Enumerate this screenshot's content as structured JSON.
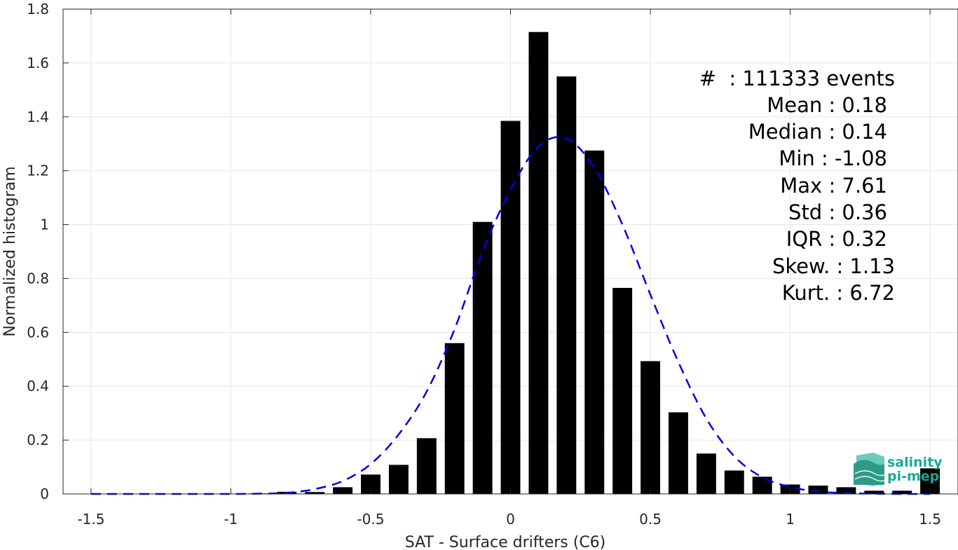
{
  "chart_data": {
    "type": "bar",
    "xlabel": "SAT - Surface drifters (C6)",
    "ylabel": "Normalized histogram",
    "xlim": [
      -1.6,
      1.6
    ],
    "ylim": [
      0,
      1.8
    ],
    "grid": true,
    "x_ticks": [
      "-1.5",
      "-1",
      "-0.5",
      "0",
      "0.5",
      "1",
      "1.5"
    ],
    "x_tick_values": [
      -1.5,
      -1,
      -0.5,
      0,
      0.5,
      1,
      1.5
    ],
    "y_ticks": [
      "0",
      "0.2",
      "0.4",
      "0.6",
      "0.8",
      "1",
      "1.2",
      "1.4",
      "1.6",
      "1.8"
    ],
    "y_tick_values": [
      0,
      0.2,
      0.4,
      0.6,
      0.8,
      1,
      1.2,
      1.4,
      1.6,
      1.8
    ],
    "bar_color": "#000000",
    "bar_width": 0.07,
    "bars": {
      "x": [
        -1.5,
        -1.4,
        -1.3,
        -1.2,
        -1.1,
        -1.0,
        -0.9,
        -0.8,
        -0.7,
        -0.6,
        -0.5,
        -0.4,
        -0.3,
        -0.2,
        -0.1,
        0.0,
        0.1,
        0.2,
        0.3,
        0.4,
        0.5,
        0.6,
        0.7,
        0.8,
        0.9,
        1.0,
        1.1,
        1.2,
        1.3,
        1.4,
        1.5
      ],
      "values": [
        0,
        0,
        0,
        0,
        0,
        0,
        0.002,
        0.008,
        0.007,
        0.025,
        0.072,
        0.108,
        0.207,
        0.56,
        1.01,
        1.385,
        1.715,
        1.55,
        1.275,
        0.765,
        0.493,
        0.303,
        0.15,
        0.087,
        0.064,
        0.035,
        0.031,
        0.025,
        0.012,
        0.012,
        0.095
      ]
    },
    "fit_line": {
      "style": "dashed",
      "color": "#0000e6",
      "x": [
        -1.5,
        -1.4,
        -1.3,
        -1.2,
        -1.1,
        -1.0,
        -0.9,
        -0.8,
        -0.7,
        -0.6,
        -0.5,
        -0.4,
        -0.3,
        -0.2,
        -0.1,
        0.0,
        0.1,
        0.2,
        0.3,
        0.4,
        0.5,
        0.6,
        0.7,
        0.8,
        0.9,
        1.0,
        1.1,
        1.2,
        1.3,
        1.4,
        1.5
      ],
      "values": [
        0.0,
        0.0,
        0.0,
        0.0,
        0.0,
        0.0,
        0.001,
        0.004,
        0.018,
        0.048,
        0.111,
        0.221,
        0.38,
        0.612,
        0.9,
        1.13,
        1.29,
        1.32,
        1.21,
        1.0,
        0.74,
        0.49,
        0.28,
        0.14,
        0.062,
        0.026,
        0.009,
        0.003,
        0.001,
        0.0,
        0.0
      ]
    },
    "stats": {
      "events": "#  : 111333 events",
      "mean": "Mean : 0.18",
      "median": "Median : 0.14",
      "min": "Min : -1.08",
      "max": "Max : 7.61",
      "std": "Std : 0.36",
      "iqr": "IQR : 0.32",
      "skew": "Skew. : 1.13",
      "kurt": "Kurt. : 6.72"
    }
  },
  "logo": {
    "line1": "salinity",
    "line2": "pi-mep",
    "color": "#1aaa94"
  }
}
